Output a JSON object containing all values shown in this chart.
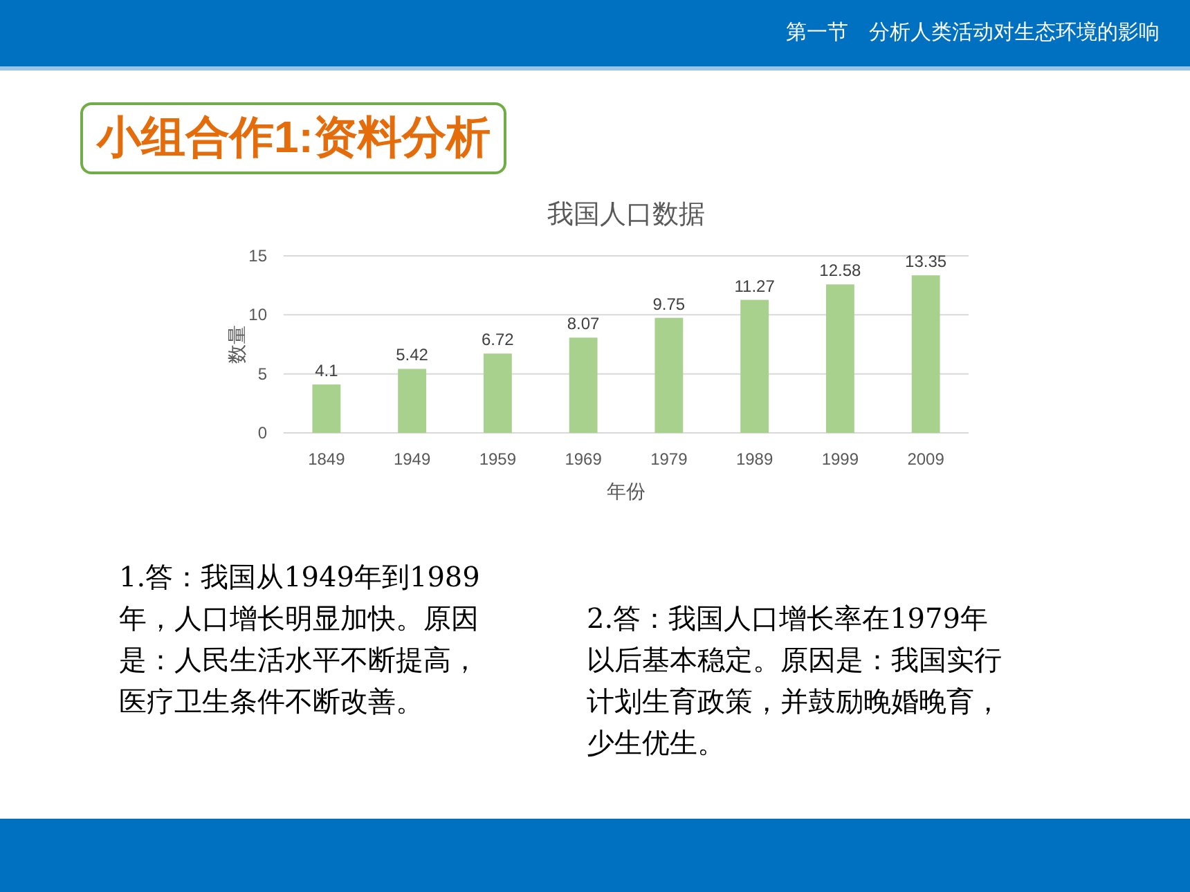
{
  "chart_data": {
    "type": "bar",
    "title": "我国人口数据",
    "xlabel": "年份",
    "ylabel": "数量",
    "categories": [
      "1849",
      "1949",
      "1959",
      "1969",
      "1979",
      "1989",
      "1999",
      "2009"
    ],
    "values": [
      4.1,
      5.42,
      6.72,
      8.07,
      9.75,
      11.27,
      12.58,
      13.35
    ],
    "color": "#a9d18e",
    "ylim": [
      0,
      15
    ],
    "yticks": [
      0,
      5,
      10,
      15
    ],
    "grid": "y",
    "data_labels": true,
    "annotations": [
      "第一节　分析人类活动对生态环境的影响",
      "小组合作1:资料分析",
      "1.答：我国从1949年到1989年，人口增长明显加快。原因是：人民生活水平不断提高，医疗卫生条件不断改善。",
      "2.答：我国人口增长率在1979年以后基本稳定。原因是：我国实行计划生育政策，并鼓励晚婚晚育，少生优生。"
    ]
  }
}
